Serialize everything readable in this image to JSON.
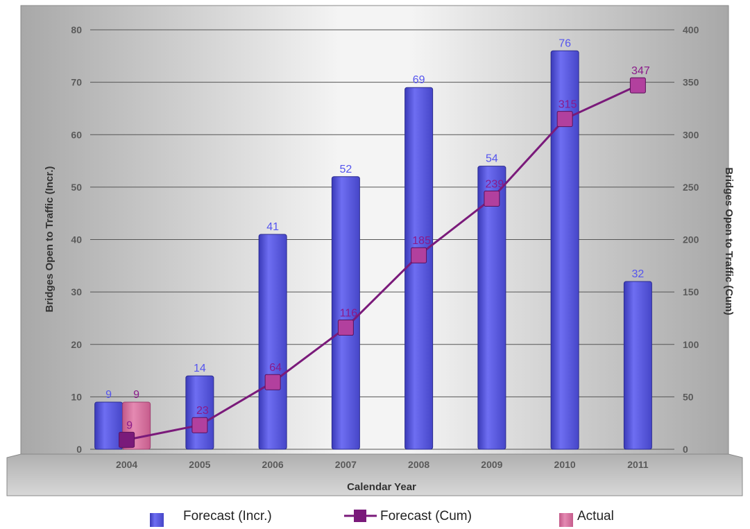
{
  "chart_data": {
    "type": "bar",
    "categories": [
      "2004",
      "2005",
      "2006",
      "2007",
      "2008",
      "2009",
      "2010",
      "2011"
    ],
    "xlabel": "Calendar Year",
    "ylabel": "Bridges Open to Traffic (Incr.)",
    "ylabel_right": "Bridges Open to Traffic (Cum)",
    "ylim": [
      0,
      80
    ],
    "ylim_right": [
      0,
      400
    ],
    "yticks": [
      0,
      10,
      20,
      30,
      40,
      50,
      60,
      70,
      80
    ],
    "yticks_right": [
      0,
      50,
      100,
      150,
      200,
      250,
      300,
      350,
      400
    ],
    "grid": true,
    "legend_position": "bottom",
    "series": [
      {
        "name": "Forecast (Incr.)",
        "type": "bar",
        "axis": "left",
        "color": "#5a5ae8",
        "values": [
          9,
          14,
          41,
          52,
          69,
          54,
          76,
          32
        ],
        "labels": [
          "9",
          "14",
          "41",
          "52",
          "69",
          "54",
          "76",
          "32"
        ]
      },
      {
        "name": "Forecast (Cum)",
        "type": "line",
        "axis": "right",
        "color": "#7a1a7a",
        "values": [
          9,
          23,
          64,
          116,
          185,
          239,
          315,
          347
        ],
        "labels": [
          "9",
          "23",
          "64",
          "116",
          "185",
          "239",
          "315",
          "347"
        ]
      },
      {
        "name": "Actual",
        "type": "bar",
        "axis": "left",
        "color": "#d86a9a",
        "values": [
          9,
          null,
          null,
          null,
          null,
          null,
          null,
          null
        ],
        "labels": [
          "9",
          "",
          "",
          "",
          "",
          "",
          "",
          ""
        ]
      }
    ]
  }
}
